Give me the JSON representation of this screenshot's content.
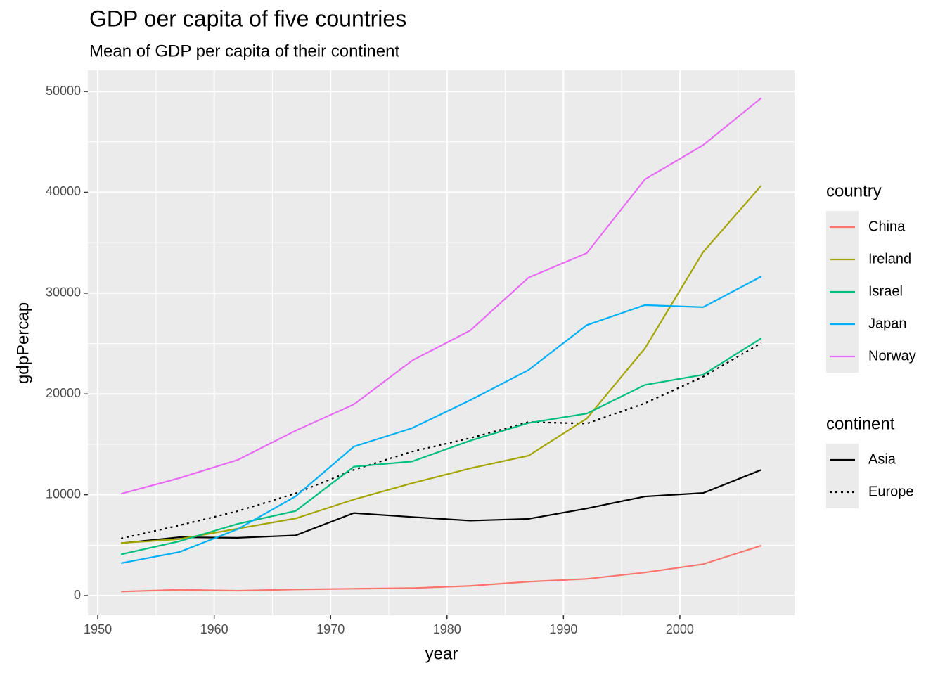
{
  "chart_data": {
    "type": "line",
    "title": "GDP oer capita of five countries",
    "subtitle": "Mean of GDP per capita of their continent",
    "x_label": "year",
    "y_label": "gdpPercap",
    "x": [
      1952,
      1957,
      1962,
      1967,
      1972,
      1977,
      1982,
      1987,
      1992,
      1997,
      2002,
      2007
    ],
    "series": [
      {
        "name": "China",
        "color": "#f8766d",
        "values": [
          400.4,
          576.0,
          487.7,
          612.7,
          676.9,
          741.2,
          962.4,
          1378.9,
          1655.8,
          2289.2,
          3119.3,
          4959.1
        ]
      },
      {
        "name": "Ireland",
        "color": "#a3a500",
        "values": [
          5210.3,
          5599.1,
          6631.6,
          7655.6,
          9530.8,
          11151.0,
          12618.3,
          13872.9,
          17558.8,
          24522.0,
          34077.0,
          40676.0
        ]
      },
      {
        "name": "Israel",
        "color": "#00bf7d",
        "values": [
          4086.5,
          5385.3,
          7105.6,
          8393.7,
          12786.9,
          13306.6,
          15367.0,
          17122.5,
          18051.5,
          20896.6,
          21905.6,
          25523.3
        ]
      },
      {
        "name": "Japan",
        "color": "#00b0f6",
        "values": [
          3217.0,
          4317.7,
          6576.6,
          9847.8,
          14778.8,
          16610.4,
          19384.1,
          22375.9,
          26824.9,
          28816.6,
          28604.6,
          31656.1
        ]
      },
      {
        "name": "Norway",
        "color": "#e76bf3",
        "values": [
          10095.4,
          11654.0,
          13450.4,
          16361.9,
          18965.1,
          23311.4,
          26298.6,
          31541.0,
          33965.7,
          41283.2,
          44684.0,
          49357.2
        ]
      }
    ],
    "legend_title": "country",
    "continent_series": [
      {
        "name": "Asia",
        "color": "#000000",
        "dash": "none",
        "values": [
          5195.5,
          5787.7,
          5729.4,
          5971.2,
          8187.5,
          7791.3,
          7434.1,
          7608.3,
          8639.7,
          9834.1,
          10174.1,
          12473.0
        ]
      },
      {
        "name": "Europe",
        "color": "#000000",
        "dash": "3,5",
        "values": [
          5661.1,
          6963.0,
          8365.5,
          10143.8,
          12479.6,
          14284.0,
          15617.9,
          17214.3,
          17061.6,
          19076.8,
          21711.7,
          25054.5
        ]
      }
    ],
    "continent_legend_title": "continent",
    "xlim": [
      1949.15,
      2009.85
    ],
    "xticks": [
      1950,
      1960,
      1970,
      1980,
      1990,
      2000
    ],
    "x_minor_ticks": [
      1955,
      1965,
      1975,
      1985,
      1995,
      2005
    ],
    "ylim": [
      -1950,
      52100
    ],
    "yticks": [
      0,
      10000,
      20000,
      30000,
      40000,
      50000
    ],
    "y_minor_ticks": [
      5000,
      15000,
      25000,
      35000,
      45000
    ],
    "grid": true
  }
}
